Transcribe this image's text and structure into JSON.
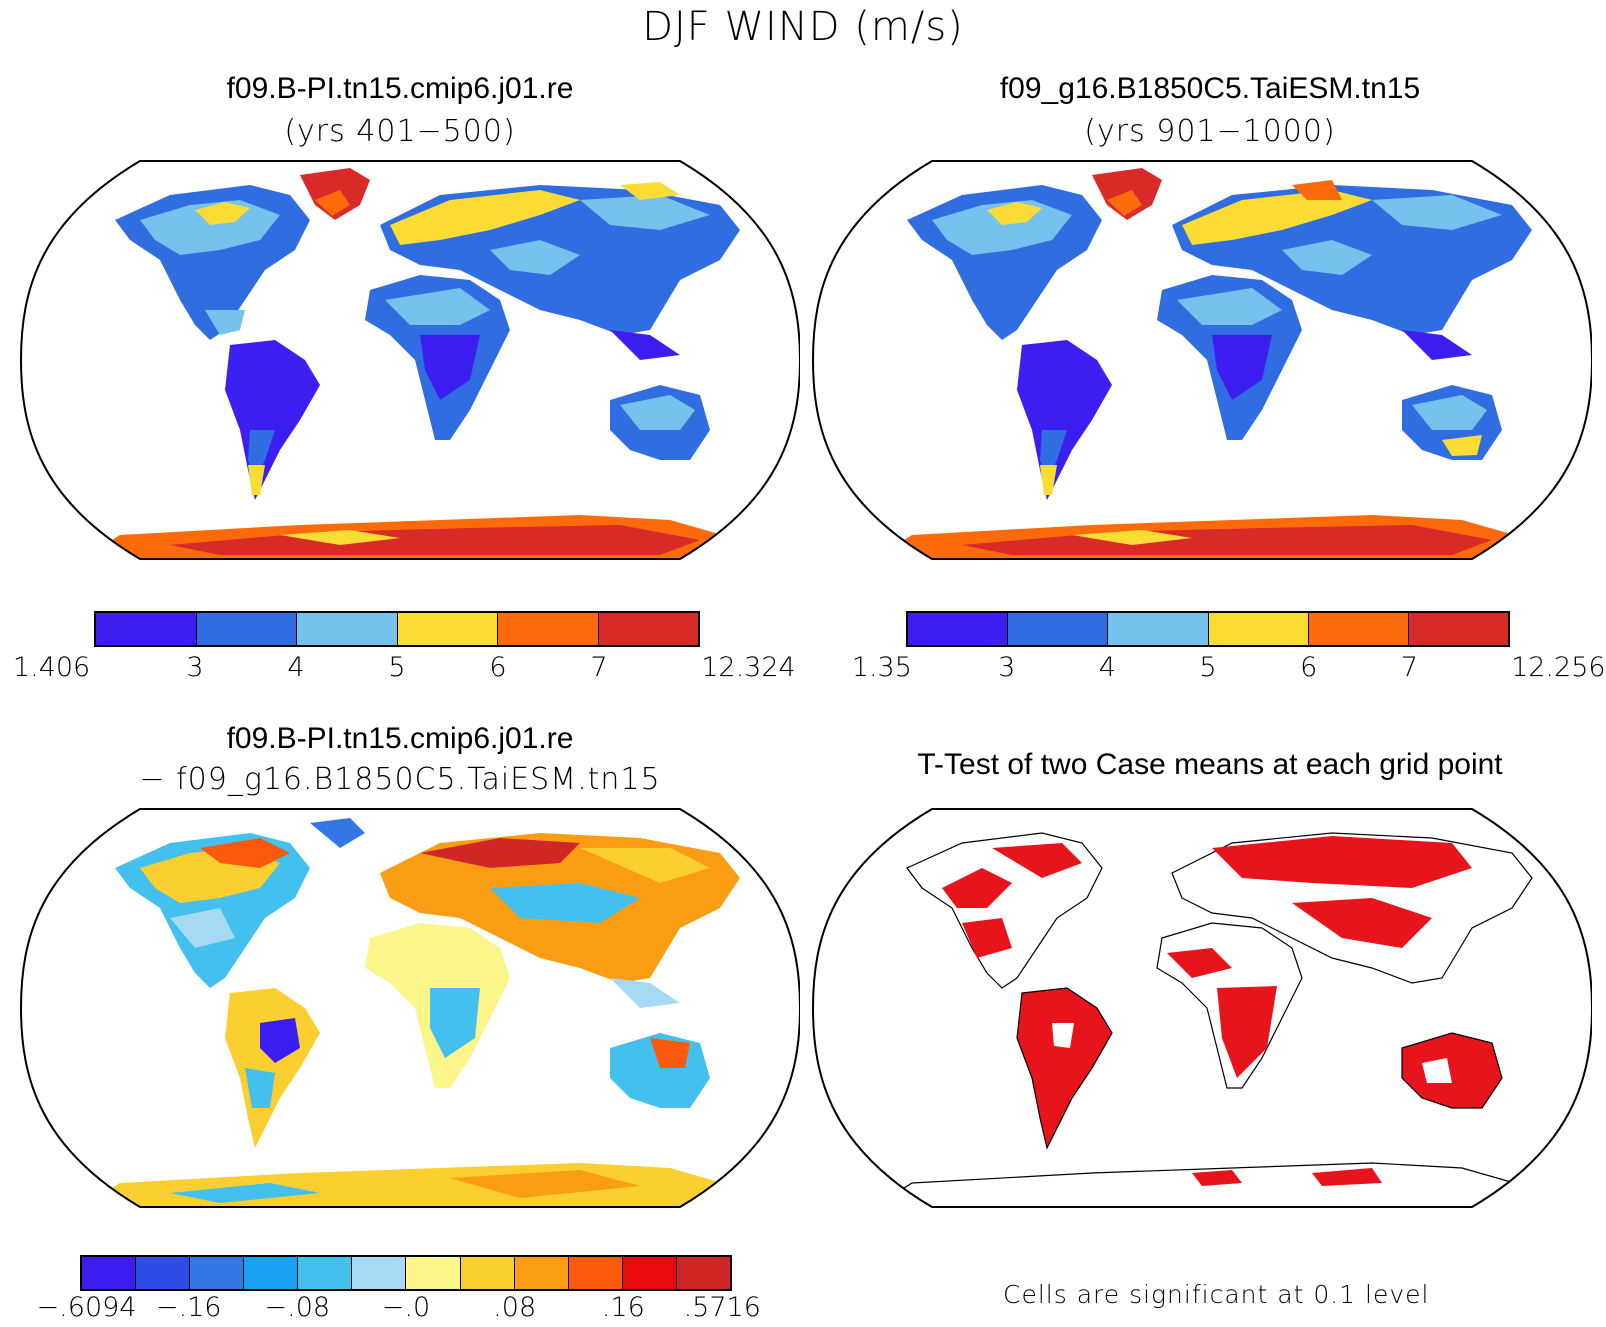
{
  "title": "DJF WIND (m/s)",
  "panels": {
    "p1": {
      "title": "f09.B-PI.tn15.cmip6.j01.re",
      "subtitle": "(yrs 401−500)"
    },
    "p2": {
      "title": "f09_g16.B1850C5.TaiESM.tn15",
      "subtitle": "(yrs 901−1000)"
    },
    "p3": {
      "title": "f09.B-PI.tn15.cmip6.j01.re",
      "subtitle": "− f09_g16.B1850C5.TaiESM.tn15"
    },
    "p4": {
      "title": "T-Test of two Case means at each grid point",
      "footnote": "Cells are significant at 0.1 level"
    }
  },
  "colorbars": {
    "cb1": {
      "colors": [
        "#3c1ff0",
        "#2f6de0",
        "#76c2ee",
        "#fbdc35",
        "#fb6b0b",
        "#d82a26"
      ],
      "labels": [
        "1.406",
        "3",
        "4",
        "5",
        "6",
        "7",
        "12.324"
      ]
    },
    "cb2": {
      "colors": [
        "#3c1ff0",
        "#2f6de0",
        "#76c2ee",
        "#fbdc35",
        "#fb6b0b",
        "#d82a26"
      ],
      "labels": [
        "1.35",
        "3",
        "4",
        "5",
        "6",
        "7",
        "12.256"
      ]
    },
    "cb3": {
      "colors": [
        "#3a1df0",
        "#2f4de6",
        "#3277e4",
        "#1aa0f0",
        "#44c0ee",
        "#a6daf2",
        "#fbf58a",
        "#fbcf2f",
        "#fb9d12",
        "#fb5a0c",
        "#ea0c0c",
        "#cf2626"
      ],
      "labels": [
        "−.6094",
        "−.16",
        "−.08",
        "−.0",
        ".08",
        ".16",
        ".5716"
      ]
    }
  },
  "significance_color": "#e8141c"
}
